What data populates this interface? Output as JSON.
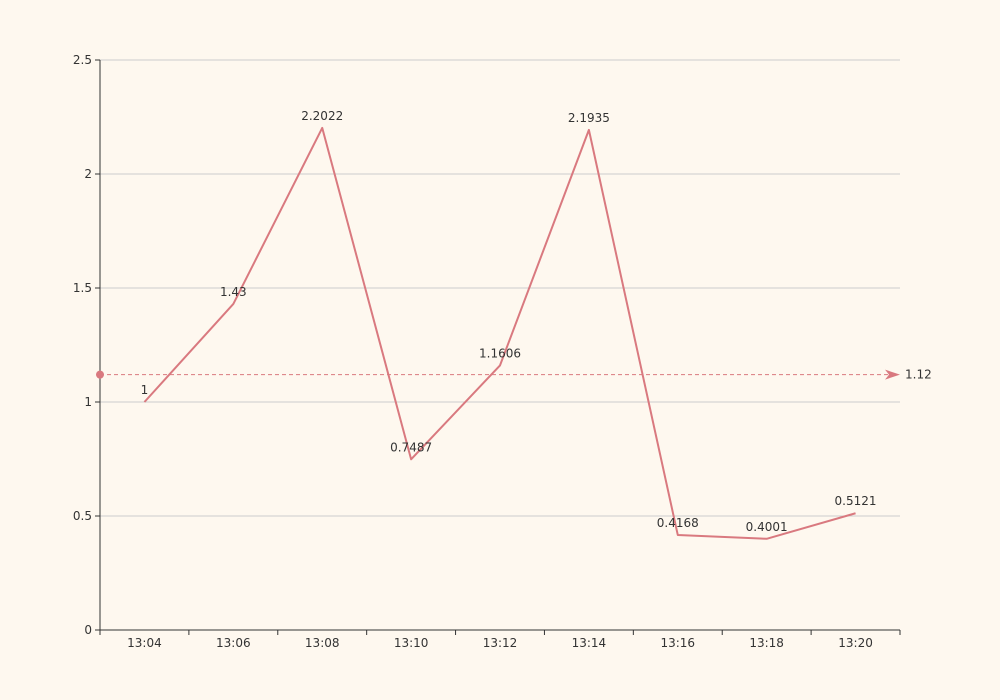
{
  "chart_data": {
    "type": "line",
    "title": "",
    "xlabel": "",
    "ylabel": "",
    "categories": [
      "13:04",
      "13:06",
      "13:08",
      "13:10",
      "13:12",
      "13:14",
      "13:16",
      "13:18",
      "13:20"
    ],
    "series": [
      {
        "values": [
          1,
          1.43,
          2.2022,
          0.7487,
          1.1606,
          2.1935,
          0.4168,
          0.4001,
          0.5121
        ],
        "labels": [
          "1",
          "1.43",
          "2.2022",
          "0.7487",
          "1.1606",
          "2.1935",
          "0.4168",
          "0.4001",
          "0.5121"
        ],
        "color": "#d9797f"
      }
    ],
    "ylim": [
      0,
      2.5
    ],
    "yticks": [
      "0",
      "0.5",
      "1",
      "1.5",
      "2",
      "2.5"
    ],
    "grid": true,
    "reference_line": {
      "value": 1.12,
      "label": "1.12",
      "style": "dashed",
      "color": "#d9797f"
    },
    "background": "#fef8ef"
  }
}
